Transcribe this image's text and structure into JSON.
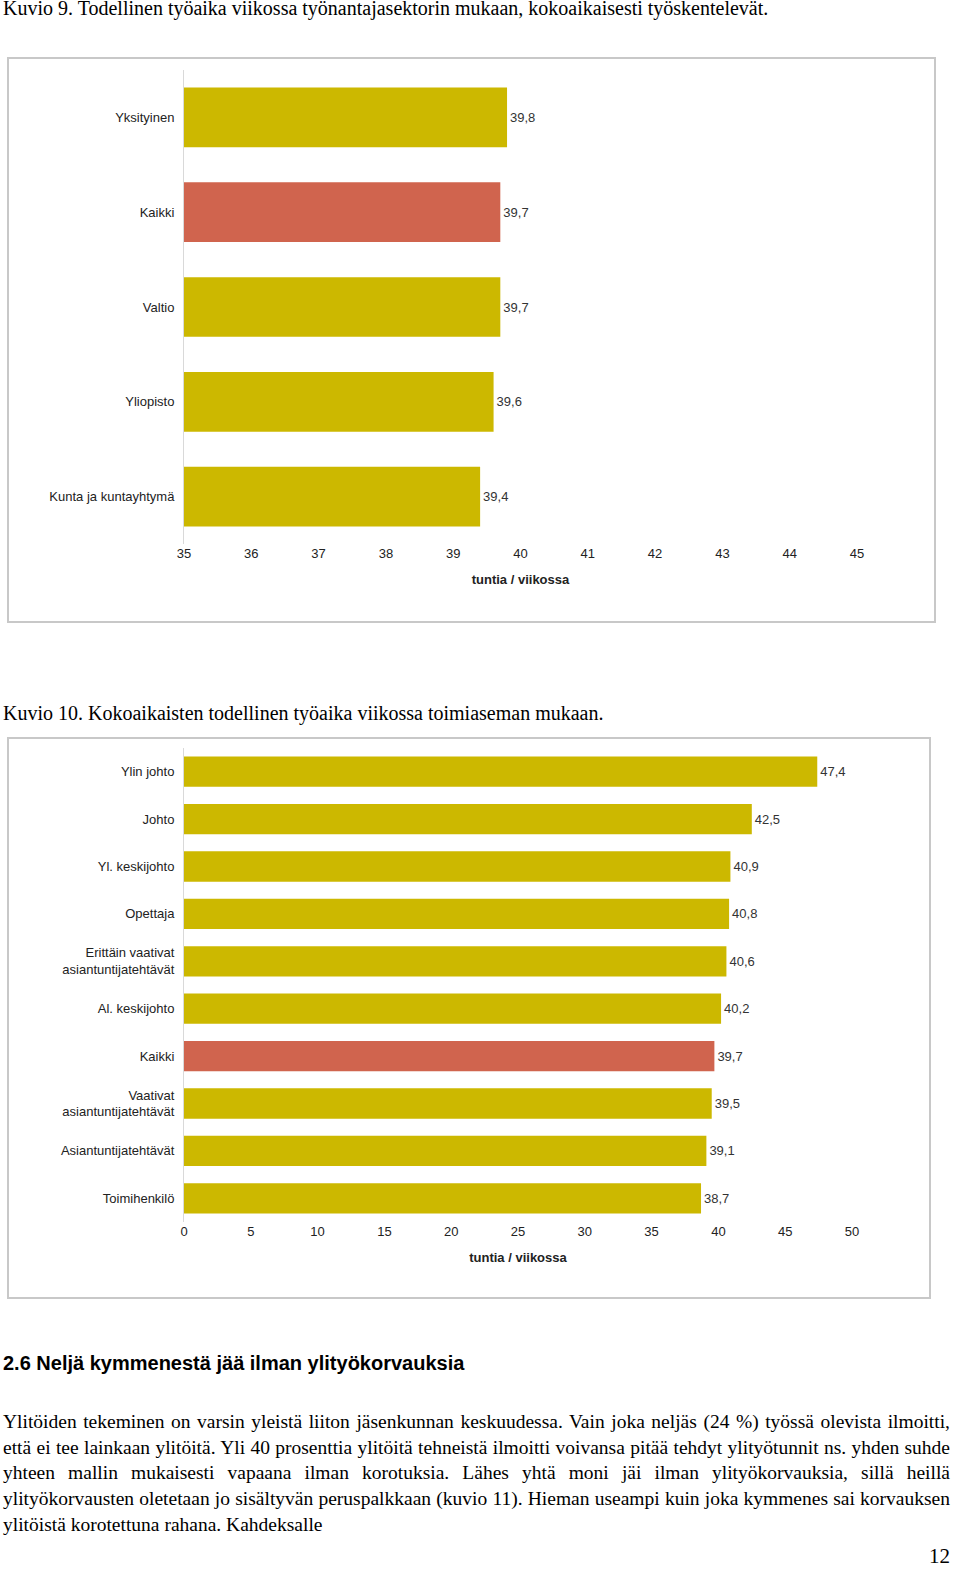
{
  "chart_data": [
    {
      "type": "bar",
      "orientation": "horizontal",
      "title": "Kuvio 9. Todellinen työaika viikossa työnantajasektorin mukaan, kokoaikaisesti työskentelevät.",
      "categories": [
        "Yksityinen",
        "Kaikki",
        "Valtio",
        "Yliopisto",
        "Kunta ja kuntayhtymä"
      ],
      "values": [
        39.8,
        39.7,
        39.7,
        39.6,
        39.4
      ],
      "value_labels": [
        "39,8",
        "39,7",
        "39,7",
        "39,6",
        "39,4"
      ],
      "colors": [
        "#CCB800",
        "#D0644E",
        "#CCB800",
        "#CCB800",
        "#CCB800"
      ],
      "xlabel": "tuntia / viikossa",
      "xlim": [
        35,
        45
      ],
      "xticks": [
        35,
        36,
        37,
        38,
        39,
        40,
        41,
        42,
        43,
        44,
        45
      ],
      "data_labels": true,
      "grid": false
    },
    {
      "type": "bar",
      "orientation": "horizontal",
      "title": "Kuvio 10. Kokoaikaisten todellinen työaika viikossa toimiaseman mukaan.",
      "categories": [
        "Ylin johto",
        "Johto",
        "Yl. keskijohto",
        "Opettaja",
        "Erittäin vaativat asiantuntijatehtävät",
        "Al. keskijohto",
        "Kaikki",
        "Vaativat asiantuntijatehtävät",
        "Asiantuntijatehtävät",
        "Toimihenkilö"
      ],
      "values": [
        47.4,
        42.5,
        40.9,
        40.8,
        40.6,
        40.2,
        39.7,
        39.5,
        39.1,
        38.7
      ],
      "value_labels": [
        "47,4",
        "42,5",
        "40,9",
        "40,8",
        "40,6",
        "40,2",
        "39,7",
        "39,5",
        "39,1",
        "38,7"
      ],
      "colors": [
        "#CCB800",
        "#CCB800",
        "#CCB800",
        "#CCB800",
        "#CCB800",
        "#CCB800",
        "#D0644E",
        "#CCB800",
        "#CCB800",
        "#CCB800"
      ],
      "xlabel": "tuntia / viikossa",
      "xlim": [
        0,
        50
      ],
      "xticks": [
        0,
        5,
        10,
        15,
        20,
        25,
        30,
        35,
        40,
        45,
        50
      ],
      "data_labels": true,
      "grid": false
    }
  ],
  "section": {
    "heading": "2.6 Neljä kymmenestä jää ilman ylityökorvauksia",
    "paragraph": "Ylitöiden tekeminen on varsin yleistä liiton jäsenkunnan keskuudessa. Vain joka neljäs (24 %) työssä olevista ilmoitti, että ei tee lainkaan ylitöitä. Yli 40 prosenttia ylitöitä tehneistä ilmoitti voivansa pitää tehdyt ylityötunnit ns. yhden suhde yhteen mallin mukaisesti vapaana ilman korotuksia. Lähes yhtä moni jäi ilman ylityökorvauksia, sillä heillä ylityökorvausten oletetaan jo sisältyvän peruspalkkaan (kuvio 11). Hieman useampi kuin joka kymmenes sai korvauksen ylitöistä korotettuna rahana. Kahdeksalle"
  },
  "page_number": "12"
}
